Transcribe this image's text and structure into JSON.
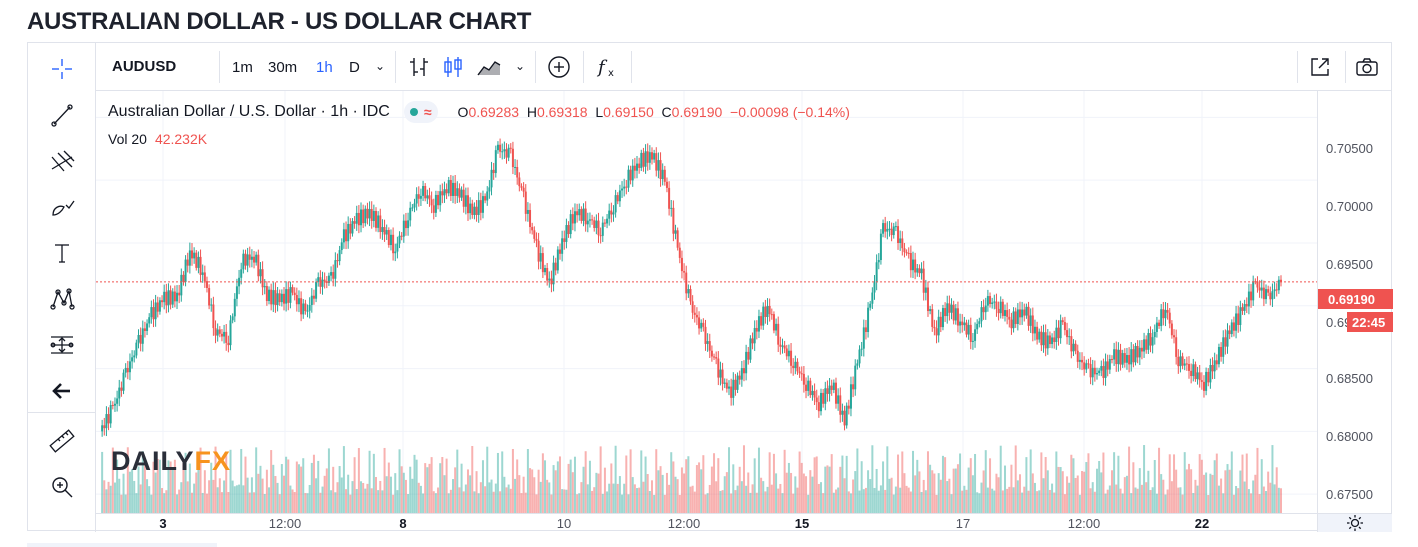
{
  "page": {
    "title": "AUSTRALIAN DOLLAR - US DOLLAR CHART"
  },
  "toolbar": {
    "symbol": "AUDUSD",
    "intervals": [
      "1m",
      "30m",
      "1h",
      "D"
    ],
    "active_interval": "1h",
    "dropdown_glyph": "⌄",
    "icons": [
      "bars-icon",
      "candles-icon",
      "area-icon",
      "compare-add-icon",
      "indicators-fx-icon",
      "fullscreen-icon",
      "camera-icon"
    ]
  },
  "drawing_tools": [
    "crosshair-icon",
    "trendline-icon",
    "pitchfork-icon",
    "brush-icon",
    "text-icon",
    "pattern-icon",
    "measure-lines-icon",
    "back-arrow-icon",
    "ruler-icon",
    "zoom-in-icon"
  ],
  "legend": {
    "description": "Australian Dollar / U.S. Dollar · 1h · IDC",
    "wave": "≈",
    "o_label": "O",
    "o": "0.69283",
    "h_label": "H",
    "h": "0.69318",
    "l_label": "L",
    "l": "0.69150",
    "c_label": "C",
    "c": "0.69190",
    "change": "−0.00098 (−0.14%)"
  },
  "volume": {
    "label": "Vol 20",
    "value": "42.232K"
  },
  "price_axis": {
    "labels": [
      "0.70500",
      "0.70000",
      "0.69500",
      "0.69000",
      "0.68500",
      "0.68000",
      "0.67500"
    ],
    "last_price": "0.69190",
    "countdown": "22:45"
  },
  "time_axis": {
    "labels": [
      {
        "text": "3",
        "bold": true
      },
      {
        "text": "12:00",
        "bold": false
      },
      {
        "text": "8",
        "bold": true
      },
      {
        "text": "10",
        "bold": false
      },
      {
        "text": "12:00",
        "bold": false
      },
      {
        "text": "15",
        "bold": true
      },
      {
        "text": "17",
        "bold": false
      },
      {
        "text": "12:00",
        "bold": false
      },
      {
        "text": "22",
        "bold": true
      }
    ]
  },
  "watermark": {
    "a": "DAILY",
    "b": "FX"
  },
  "colors": {
    "up": "#26a69a",
    "down": "#ef5350",
    "accent": "#2962ff",
    "grid": "#f0f3fa"
  },
  "chart_data": {
    "type": "candlestick",
    "y_range": [
      0.6735,
      0.7071
    ],
    "closes": [
      0.68,
      0.6818,
      0.6846,
      0.6871,
      0.6893,
      0.6906,
      0.6907,
      0.6943,
      0.6928,
      0.688,
      0.6874,
      0.6935,
      0.694,
      0.6908,
      0.6905,
      0.691,
      0.6893,
      0.6918,
      0.6921,
      0.6955,
      0.6969,
      0.6974,
      0.6962,
      0.6945,
      0.6972,
      0.6993,
      0.698,
      0.6995,
      0.699,
      0.6974,
      0.6983,
      0.7025,
      0.702,
      0.6985,
      0.6946,
      0.6917,
      0.6951,
      0.6975,
      0.697,
      0.696,
      0.698,
      0.7,
      0.7015,
      0.702,
      0.7,
      0.6945,
      0.69,
      0.6878,
      0.6852,
      0.683,
      0.6846,
      0.688,
      0.69,
      0.687,
      0.6855,
      0.6838,
      0.6822,
      0.6838,
      0.6808,
      0.6855,
      0.69,
      0.6962,
      0.6958,
      0.6936,
      0.6924,
      0.6878,
      0.69,
      0.6888,
      0.6875,
      0.6905,
      0.69,
      0.6888,
      0.6897,
      0.6876,
      0.687,
      0.6885,
      0.686,
      0.6848,
      0.6846,
      0.686,
      0.6857,
      0.6865,
      0.6876,
      0.69,
      0.6857,
      0.685,
      0.6838,
      0.6858,
      0.688,
      0.6896,
      0.6917,
      0.6906,
      0.6919
    ]
  }
}
